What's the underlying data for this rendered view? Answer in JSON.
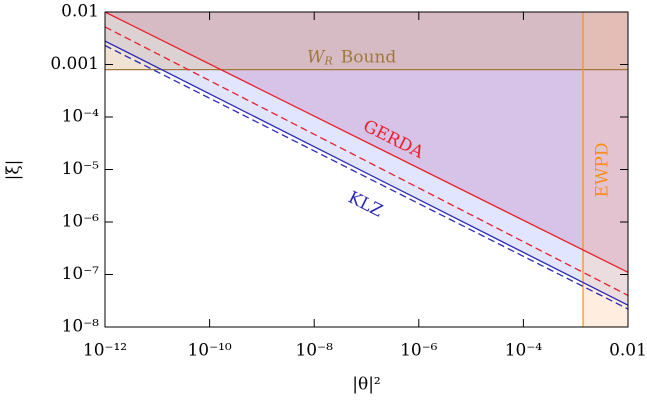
{
  "chart_data": {
    "type": "line",
    "xlabel": "|θ|²",
    "ylabel": "|ξ|",
    "xlog": true,
    "ylog": true,
    "xlim": [
      1e-12,
      0.01
    ],
    "ylim": [
      1e-08,
      0.01
    ],
    "xticks": [
      {
        "value": 1e-12,
        "label": "10⁻¹²"
      },
      {
        "value": 1e-10,
        "label": "10⁻¹⁰"
      },
      {
        "value": 1e-08,
        "label": "10⁻⁸"
      },
      {
        "value": 1e-06,
        "label": "10⁻⁶"
      },
      {
        "value": 0.0001,
        "label": "10⁻⁴"
      },
      0.01
    ],
    "yticks": [
      {
        "value": 1e-08,
        "label": "10⁻⁸"
      },
      {
        "value": 1e-07,
        "label": "10⁻⁷"
      },
      {
        "value": 1e-06,
        "label": "10⁻⁶"
      },
      {
        "value": 1e-05,
        "label": "10⁻⁵"
      },
      {
        "value": 0.0001,
        "label": "10⁻⁴"
      },
      0.001,
      0.01
    ],
    "series": [
      {
        "name": "GERDA",
        "color": "#e8202a",
        "x": [
          1e-12,
          0.01
        ],
        "values": [
          0.01,
          1.1e-07
        ]
      },
      {
        "color": "#e8202a",
        "dashed": true,
        "x": [
          1e-12,
          0.01
        ],
        "values": [
          0.0052,
          4e-08
        ]
      },
      {
        "name": "KLZ",
        "color": "#2a2ab8",
        "x": [
          1e-12,
          0.01
        ],
        "values": [
          0.0028,
          2.6e-08
        ]
      },
      {
        "color": "#2a2ab8",
        "dashed": true,
        "x": [
          1e-12,
          0.01
        ],
        "values": [
          0.0023,
          2.2e-08
        ]
      }
    ],
    "hline": {
      "y": 0.0008,
      "color": "#a0783c",
      "label": "W",
      "subscript": "R",
      "suffix": "Bound"
    },
    "vline": {
      "x": 0.00138,
      "color": "#ff8c1a",
      "label": "EWPD"
    }
  }
}
